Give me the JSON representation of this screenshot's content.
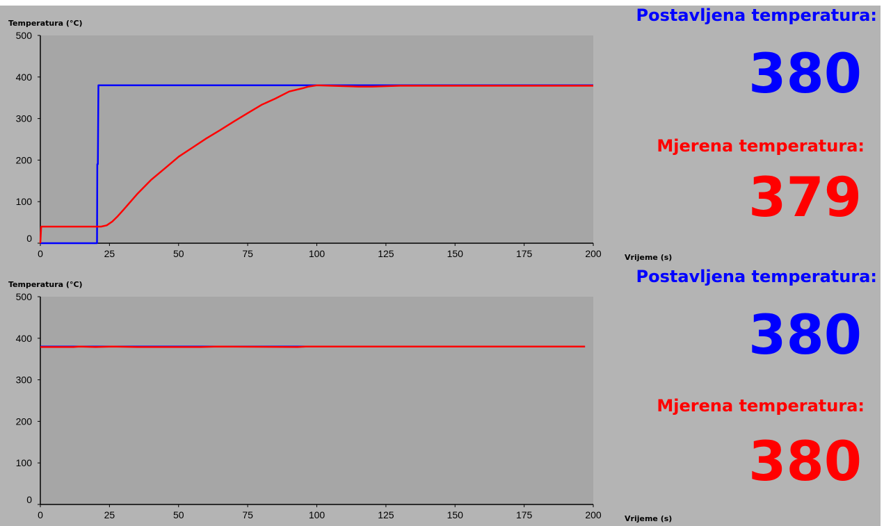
{
  "colors": {
    "setpoint": "#0000ff",
    "measured": "#ff0000",
    "plot_bg": "#a6a6a6",
    "panel_bg": "#b4b4b4"
  },
  "top": {
    "ylabel": "Temperatura (°C)",
    "xlabel": "Vrijeme (s)",
    "set_label": "Postavljena temperatura:",
    "set_value": "380",
    "meas_label": "Mjerena temperatura:",
    "meas_value": "379"
  },
  "bottom": {
    "ylabel": "Temperatura (°C)",
    "xlabel": "Vrijeme (s)",
    "set_label": "Postavljena temperatura:",
    "set_value": "380",
    "meas_label": "Mjerena temperatura:",
    "meas_value": "380"
  },
  "chart_data": [
    {
      "type": "line",
      "xlabel": "Vrijeme (s)",
      "ylabel": "Temperatura (°C)",
      "xlim": [
        0,
        200
      ],
      "ylim": [
        0,
        500
      ],
      "xticks": [
        0,
        25,
        50,
        75,
        100,
        125,
        150,
        175,
        200
      ],
      "yticks": [
        0,
        100,
        200,
        300,
        400,
        500
      ],
      "series": [
        {
          "color": "#0000ff",
          "x": [
            0,
            20.5,
            20.6,
            20.8,
            21,
            200
          ],
          "y": [
            0,
            0,
            190,
            190,
            380,
            380
          ]
        },
        {
          "color": "#ff0000",
          "x": [
            0,
            0.3,
            20,
            22,
            24,
            26,
            28,
            30,
            35,
            40,
            45,
            50,
            55,
            60,
            65,
            70,
            75,
            80,
            85,
            90,
            95,
            97,
            100,
            105,
            110,
            115,
            120,
            125,
            130,
            150,
            170,
            200
          ],
          "y": [
            0,
            40,
            40,
            40,
            43,
            52,
            65,
            80,
            118,
            152,
            180,
            208,
            230,
            252,
            272,
            293,
            313,
            333,
            348,
            365,
            373,
            377,
            380,
            379,
            378,
            377,
            377,
            378,
            379,
            379,
            379,
            379
          ]
        }
      ]
    },
    {
      "type": "line",
      "xlabel": "Vrijeme (s)",
      "ylabel": "Temperatura (°C)",
      "xlim": [
        0,
        200
      ],
      "ylim": [
        0,
        500
      ],
      "xticks": [
        0,
        25,
        50,
        75,
        100,
        125,
        150,
        175,
        200
      ],
      "yticks": [
        0,
        100,
        200,
        300,
        400,
        500
      ],
      "series": [
        {
          "color": "#0000ff",
          "x": [
            0,
            13,
            20,
            25,
            35,
            50,
            58,
            64,
            93,
            96,
            197
          ],
          "y": [
            380,
            380,
            380,
            380,
            380,
            380,
            380,
            380,
            380,
            380,
            380
          ]
        },
        {
          "color": "#ff0000",
          "x": [
            0,
            12,
            14,
            20,
            26,
            35,
            50,
            58,
            64,
            93,
            96,
            197
          ],
          "y": [
            379,
            379,
            380,
            379,
            380,
            379,
            379,
            379,
            380,
            379,
            380,
            380
          ]
        }
      ]
    }
  ]
}
